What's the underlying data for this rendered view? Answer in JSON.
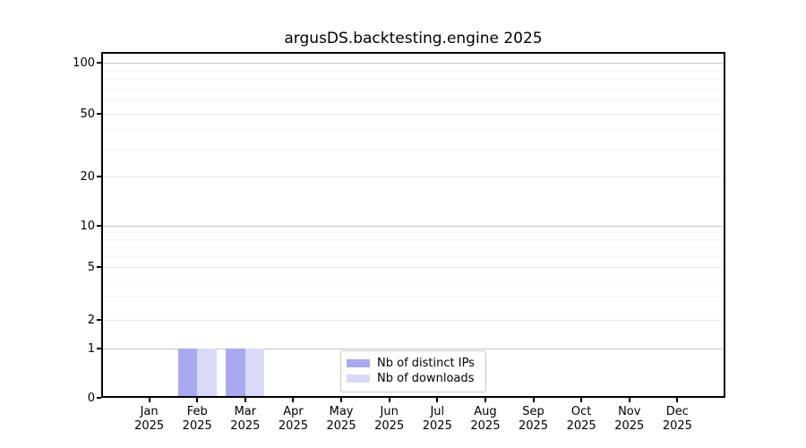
{
  "chart_data": {
    "type": "bar",
    "title": "argusDS.backtesting.engine 2025",
    "categories": [
      "Jan",
      "Feb",
      "Mar",
      "Apr",
      "May",
      "Jun",
      "Jul",
      "Aug",
      "Sep",
      "Oct",
      "Nov",
      "Dec"
    ],
    "category_year": "2025",
    "series": [
      {
        "name": "Nb of distinct IPs",
        "color": "#a9a9f0",
        "values": [
          0,
          1,
          1,
          0,
          0,
          0,
          0,
          0,
          0,
          0,
          0,
          0
        ]
      },
      {
        "name": "Nb of downloads",
        "color": "#d9d9f8",
        "values": [
          0,
          1,
          1,
          0,
          0,
          0,
          0,
          0,
          0,
          0,
          0,
          0
        ]
      }
    ],
    "yticks": [
      0,
      1,
      2,
      5,
      10,
      20,
      50,
      100
    ],
    "ylim": [
      0,
      113
    ],
    "yscale": "symlog",
    "grid": true,
    "legend_position": "lower center",
    "colors": {
      "decade_gridline": "#c6c6c6",
      "major_gridline": "#e9e9e9",
      "minor_gridline": "#f3f3f3",
      "spine": "#000000"
    }
  }
}
